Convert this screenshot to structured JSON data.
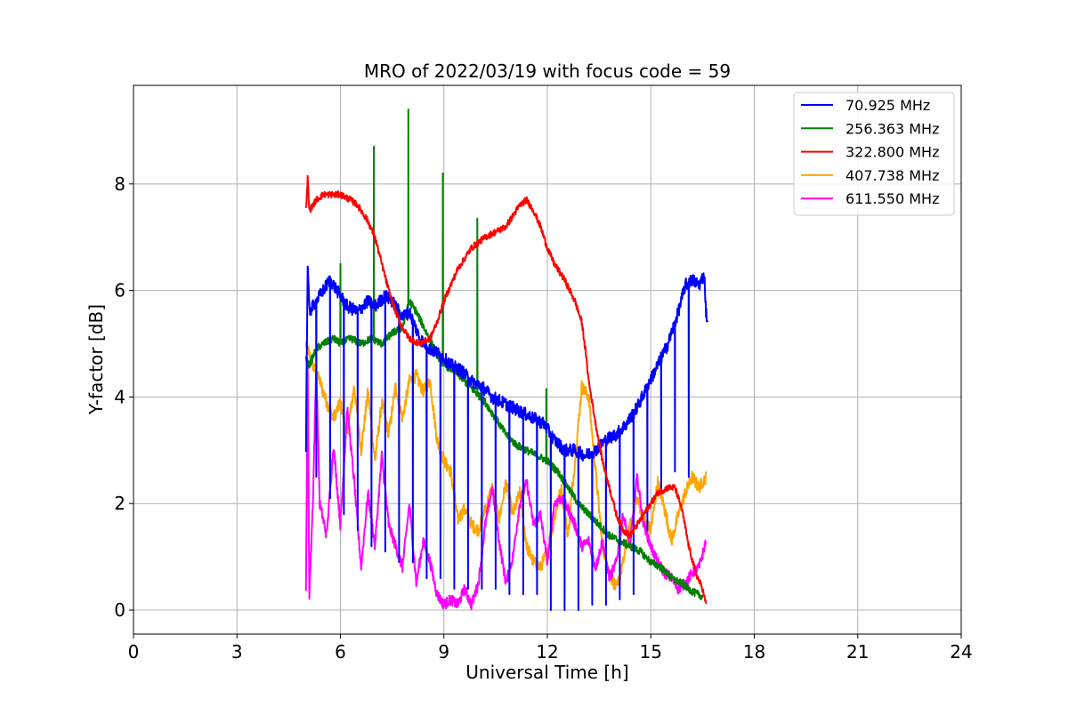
{
  "chart_data": {
    "type": "line",
    "title": "MRO of 2022/03/19 with focus code = 59",
    "xlabel": "Universal Time [h]",
    "ylabel": "Y-factor [dB]",
    "xlim": [
      0,
      24
    ],
    "ylim": [
      -0.45,
      9.85
    ],
    "xticks": [
      0,
      3,
      6,
      9,
      12,
      15,
      18,
      21,
      24
    ],
    "yticks": [
      0,
      2,
      4,
      6,
      8
    ],
    "grid": true,
    "legend_position": "top-right",
    "series": [
      {
        "name": "70.925 MHz",
        "legend_label": " 70.925 MHz",
        "color": "#0000ff",
        "x": [
          5.0,
          5.05,
          5.1,
          5.3,
          5.5,
          5.7,
          6.0,
          6.2,
          6.5,
          6.8,
          7.0,
          7.3,
          7.5,
          7.8,
          8.0,
          8.3,
          8.6,
          8.9,
          9.2,
          9.5,
          9.8,
          10.1,
          10.4,
          10.7,
          11.0,
          11.3,
          11.6,
          11.9,
          12.2,
          12.5,
          12.8,
          13.1,
          13.4,
          13.7,
          14.0,
          14.3,
          14.6,
          14.9,
          15.2,
          15.5,
          15.8,
          16.0,
          16.2,
          16.4,
          16.55,
          16.6,
          16.65
        ],
        "y": [
          3.0,
          6.5,
          5.6,
          5.8,
          6.0,
          6.2,
          5.9,
          5.7,
          5.6,
          5.8,
          5.7,
          5.9,
          5.8,
          5.5,
          5.6,
          5.1,
          4.9,
          4.8,
          4.6,
          4.5,
          4.3,
          4.2,
          4.0,
          3.9,
          3.8,
          3.7,
          3.6,
          3.5,
          3.2,
          3.0,
          3.0,
          2.9,
          3.0,
          3.2,
          3.3,
          3.5,
          3.8,
          4.2,
          4.6,
          5.0,
          5.6,
          6.1,
          6.2,
          6.1,
          6.3,
          5.6,
          5.4
        ],
        "dropouts": {
          "x": [
            5.3,
            5.7,
            6.1,
            6.5,
            6.9,
            7.3,
            7.7,
            8.1,
            8.5,
            8.9,
            9.3,
            9.7,
            10.1,
            10.5,
            10.9,
            11.3,
            11.7,
            12.1,
            12.5,
            12.9,
            13.3,
            13.7,
            14.1,
            14.5,
            14.9,
            15.3,
            15.7,
            16.1
          ],
          "y": [
            2.5,
            2.1,
            1.8,
            1.5,
            1.2,
            1.1,
            0.9,
            0.9,
            0.6,
            0.6,
            0.4,
            0.4,
            0.4,
            0.4,
            0.3,
            0.3,
            0.3,
            0.0,
            0.0,
            0.0,
            0.1,
            0.1,
            0.2,
            0.3,
            1.5,
            2.2,
            2.6,
            2.5
          ]
        }
      },
      {
        "name": "256.363 MHz",
        "legend_label": "256.363 MHz",
        "color": "#008000",
        "x": [
          5.0,
          5.1,
          5.3,
          5.5,
          5.8,
          6.0,
          6.3,
          6.6,
          6.9,
          7.2,
          7.5,
          7.8,
          8.0,
          8.2,
          8.5,
          8.8,
          9.0,
          9.3,
          9.6,
          9.9,
          10.2,
          10.5,
          10.8,
          11.1,
          11.4,
          11.7,
          12.0,
          12.3,
          12.6,
          12.9,
          13.2,
          13.5,
          13.8,
          14.1,
          14.4,
          14.7,
          15.0,
          15.3,
          15.6,
          15.9,
          16.2,
          16.5
        ],
        "y": [
          4.7,
          4.6,
          4.9,
          5.0,
          5.1,
          5.0,
          5.1,
          5.0,
          5.1,
          5.0,
          5.2,
          5.3,
          5.8,
          5.6,
          5.2,
          4.8,
          4.6,
          4.5,
          4.3,
          4.1,
          3.9,
          3.6,
          3.3,
          3.1,
          3.0,
          2.9,
          2.8,
          2.6,
          2.3,
          2.0,
          1.8,
          1.6,
          1.4,
          1.3,
          1.2,
          1.1,
          0.9,
          0.8,
          0.6,
          0.5,
          0.35,
          0.25
        ],
        "spikes": {
          "x": [
            6.0,
            6.97,
            7.97,
            8.97,
            9.97,
            11.97
          ],
          "y": [
            6.5,
            8.7,
            9.4,
            8.2,
            7.35,
            4.15
          ]
        }
      },
      {
        "name": "322.800 MHz",
        "legend_label": "322.800 MHz",
        "color": "#ff0000",
        "x": [
          5.0,
          5.05,
          5.1,
          5.3,
          5.5,
          5.8,
          6.0,
          6.3,
          6.5,
          6.8,
          7.0,
          7.2,
          7.4,
          7.6,
          7.8,
          8.0,
          8.3,
          8.6,
          8.8,
          9.0,
          9.2,
          9.4,
          9.6,
          9.8,
          10.0,
          10.2,
          10.5,
          10.8,
          11.0,
          11.2,
          11.4,
          11.6,
          11.8,
          12.0,
          12.2,
          12.5,
          12.8,
          13.0,
          13.1,
          13.2,
          13.4,
          13.6,
          13.8,
          14.0,
          14.2,
          14.4,
          14.6,
          14.8,
          15.0,
          15.2,
          15.5,
          15.7,
          15.9,
          16.1,
          16.3,
          16.5,
          16.6
        ],
        "y": [
          7.5,
          8.1,
          7.5,
          7.7,
          7.8,
          7.8,
          7.8,
          7.7,
          7.6,
          7.3,
          7.0,
          6.5,
          6.0,
          5.6,
          5.3,
          5.1,
          5.0,
          5.1,
          5.4,
          5.8,
          6.1,
          6.4,
          6.6,
          6.8,
          6.9,
          7.0,
          7.1,
          7.2,
          7.4,
          7.6,
          7.7,
          7.5,
          7.2,
          6.8,
          6.5,
          6.2,
          5.8,
          5.4,
          4.9,
          4.3,
          3.5,
          2.8,
          2.3,
          1.8,
          1.5,
          1.4,
          1.6,
          1.8,
          2.0,
          2.2,
          2.3,
          2.3,
          1.9,
          1.2,
          0.7,
          0.4,
          0.1
        ]
      },
      {
        "name": "407.738 MHz",
        "legend_label": "407.738 MHz",
        "color": "#ffa500",
        "x": [
          5.0,
          5.2,
          5.4,
          5.6,
          5.8,
          6.0,
          6.2,
          6.4,
          6.6,
          6.8,
          7.0,
          7.2,
          7.4,
          7.6,
          7.8,
          8.0,
          8.2,
          8.4,
          8.6,
          8.8,
          9.0,
          9.2,
          9.4,
          9.6,
          9.8,
          10.0,
          10.2,
          10.4,
          10.6,
          10.8,
          11.0,
          11.2,
          11.4,
          11.6,
          11.8,
          12.0,
          12.2,
          12.4,
          12.6,
          12.8,
          13.0,
          13.2,
          13.4,
          13.6,
          13.8,
          14.0,
          14.2,
          14.4,
          14.6,
          14.8,
          15.0,
          15.2,
          15.4,
          15.6,
          15.8,
          16.0,
          16.2,
          16.4,
          16.6
        ],
        "y": [
          5.0,
          4.6,
          4.3,
          3.9,
          3.6,
          3.9,
          3.3,
          4.2,
          3.0,
          4.1,
          2.8,
          3.9,
          3.3,
          4.2,
          3.6,
          4.3,
          4.4,
          4.1,
          4.3,
          3.2,
          2.8,
          2.6,
          1.7,
          1.9,
          1.6,
          1.5,
          1.9,
          2.3,
          1.7,
          2.4,
          1.8,
          2.2,
          1.2,
          0.9,
          0.8,
          1.1,
          1.7,
          2.3,
          1.4,
          2.8,
          4.2,
          4.0,
          2.6,
          1.2,
          0.7,
          0.4,
          0.9,
          1.6,
          2.1,
          1.7,
          1.5,
          2.4,
          1.9,
          1.3,
          1.8,
          2.2,
          2.5,
          2.3,
          2.5
        ]
      },
      {
        "name": "611.550 MHz",
        "legend_label": "611.550 MHz",
        "color": "#ff00ff",
        "x": [
          5.0,
          5.05,
          5.1,
          5.2,
          5.3,
          5.4,
          5.6,
          5.8,
          6.0,
          6.2,
          6.4,
          6.6,
          6.8,
          7.0,
          7.2,
          7.4,
          7.6,
          7.8,
          8.0,
          8.2,
          8.4,
          8.6,
          8.8,
          9.0,
          9.2,
          9.4,
          9.6,
          9.8,
          10.0,
          10.2,
          10.4,
          10.6,
          10.8,
          11.0,
          11.2,
          11.4,
          11.6,
          11.8,
          12.0,
          12.2,
          12.4,
          12.6,
          12.8,
          13.0,
          13.2,
          13.4,
          13.6,
          13.8,
          14.0,
          14.2,
          14.4,
          14.6,
          14.8,
          15.0,
          15.2,
          15.4,
          15.6,
          15.8,
          16.0,
          16.2,
          16.4,
          16.6
        ],
        "y": [
          0.3,
          4.5,
          0.3,
          2.0,
          4.6,
          2.0,
          1.4,
          3.1,
          1.6,
          3.8,
          2.4,
          0.8,
          2.2,
          1.2,
          2.9,
          1.6,
          1.2,
          0.8,
          2.0,
          0.5,
          1.3,
          0.9,
          0.3,
          0.1,
          0.2,
          0.1,
          0.4,
          0.1,
          0.5,
          1.6,
          2.3,
          1.3,
          0.5,
          1.0,
          2.0,
          2.4,
          1.6,
          1.8,
          0.9,
          2.0,
          2.1,
          1.9,
          1.6,
          1.2,
          1.3,
          0.8,
          1.3,
          0.6,
          0.9,
          1.8,
          1.2,
          2.5,
          1.6,
          1.2,
          0.9,
          0.7,
          0.6,
          0.4,
          0.5,
          0.7,
          0.8,
          1.3
        ]
      }
    ]
  }
}
